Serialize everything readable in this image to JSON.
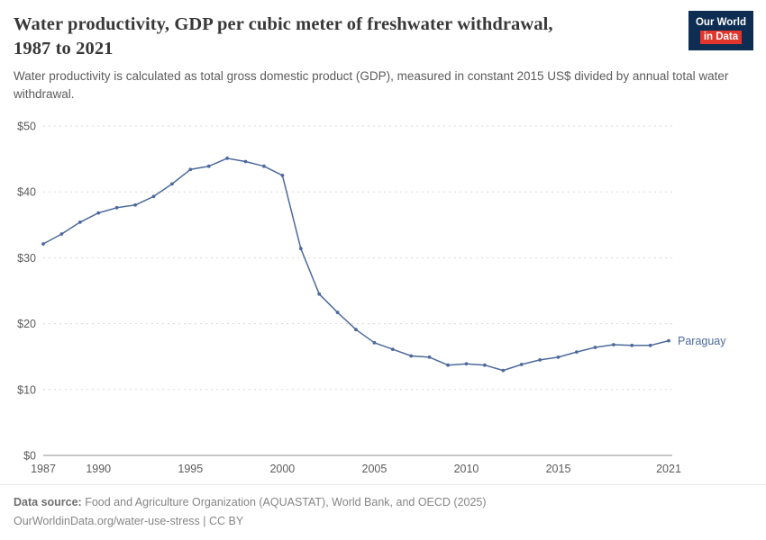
{
  "header": {
    "title": "Water productivity, GDP per cubic meter of freshwater withdrawal,\n1987 to 2021",
    "subtitle": "Water productivity is calculated as total gross domestic product (GDP), measured in constant 2015 US$ divided by annual total water withdrawal.",
    "logo": {
      "line1": "Our World",
      "line2": "in Data"
    }
  },
  "colors": {
    "line": "#4c6a9c",
    "logo_bg": "#0d2d52",
    "logo_red": "#e2362d",
    "gridline": "#d8d8d8",
    "axis": "#8f8f8f",
    "tick_label": "#5b5b5b"
  },
  "chart_data": {
    "type": "line",
    "title": "Water productivity, GDP per cubic meter of freshwater withdrawal, 1987 to 2021",
    "xlabel": "",
    "ylabel": "",
    "xlim": [
      1987,
      2021
    ],
    "ylim": [
      0,
      50
    ],
    "yticks": [
      0,
      10,
      20,
      30,
      40,
      50
    ],
    "ytick_labels": [
      "$0",
      "$10",
      "$20",
      "$30",
      "$40",
      "$50"
    ],
    "xticks": [
      1987,
      1990,
      1995,
      2000,
      2005,
      2010,
      2015,
      2021
    ],
    "grid": true,
    "legend_position": "end-of-line",
    "series": [
      {
        "name": "Paraguay",
        "color": "#4c6a9c",
        "x": [
          1987,
          1988,
          1989,
          1990,
          1991,
          1992,
          1993,
          1994,
          1995,
          1996,
          1997,
          1998,
          1999,
          2000,
          2001,
          2002,
          2003,
          2004,
          2005,
          2006,
          2007,
          2008,
          2009,
          2010,
          2011,
          2012,
          2013,
          2014,
          2015,
          2016,
          2017,
          2018,
          2019,
          2020,
          2021
        ],
        "values": [
          32.1,
          33.6,
          35.4,
          36.8,
          37.6,
          38.0,
          39.3,
          41.2,
          43.4,
          43.9,
          45.1,
          44.6,
          43.9,
          42.5,
          31.4,
          24.5,
          21.7,
          19.1,
          17.1,
          16.1,
          15.1,
          14.9,
          13.7,
          13.9,
          13.7,
          12.9,
          13.8,
          14.5,
          14.9,
          15.7,
          16.4,
          16.8,
          16.7,
          16.7,
          17.4
        ]
      }
    ]
  },
  "footer": {
    "datasource_label": "Data source:",
    "datasource_text": " Food and Agriculture Organization (AQUASTAT), World Bank, and OECD (2025)",
    "license_line": "OurWorldinData.org/water-use-stress | CC BY"
  }
}
